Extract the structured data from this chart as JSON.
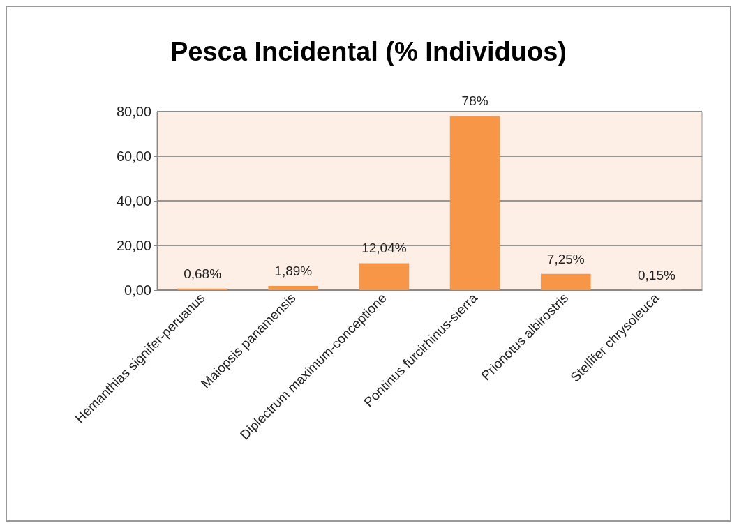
{
  "chart_data": {
    "type": "bar",
    "title": "Pesca Incidental (% Individuos)",
    "categories": [
      "Hemanthias signifer-peruanus",
      "Maiopsis panamensis",
      "Diplectrum maximum-conceptione",
      "Pontinus furcirhinus-sierra",
      "Prionotus albirostris",
      "Stellifer chrysoleuca"
    ],
    "values": [
      0.68,
      1.89,
      12.04,
      78,
      7.25,
      0.15
    ],
    "value_labels": [
      "0,68%",
      "1,89%",
      "12,04%",
      "78%",
      "7,25%",
      "0,15%"
    ],
    "color": "#f79646",
    "ylim": [
      0,
      80
    ],
    "yticks": [
      {
        "value": 0,
        "label": "0,00"
      },
      {
        "value": 20,
        "label": "20,00"
      },
      {
        "value": 40,
        "label": "40,00"
      },
      {
        "value": 60,
        "label": "60,00"
      },
      {
        "value": 80,
        "label": "80,00"
      }
    ],
    "grid": "y"
  }
}
